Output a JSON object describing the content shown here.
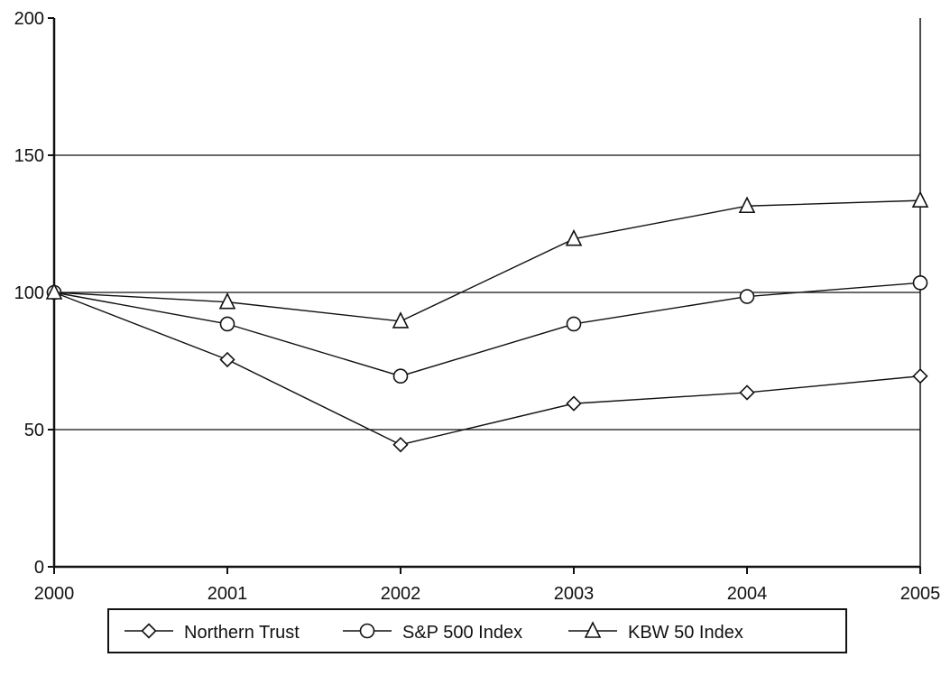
{
  "chart_data": {
    "type": "line",
    "title": "",
    "xlabel": "",
    "ylabel": "",
    "x": [
      "2000",
      "2001",
      "2002",
      "2003",
      "2004",
      "2005"
    ],
    "ylim": [
      0,
      200
    ],
    "yticks": [
      0,
      50,
      100,
      150,
      200
    ],
    "ytick_labels": [
      "0",
      "50",
      "100",
      "150",
      "200"
    ],
    "grid": "horizontal at 50, 100, 150",
    "legend_position": "bottom",
    "series": [
      {
        "name": "Northern Trust",
        "marker": "diamond",
        "values": [
          100,
          75.5,
          44.5,
          59.5,
          63.5,
          69.5
        ]
      },
      {
        "name": "S&P 500 Index",
        "marker": "circle",
        "values": [
          100,
          88.5,
          69.5,
          88.5,
          98.5,
          103.5
        ]
      },
      {
        "name": "KBW 50 Index",
        "marker": "triangle",
        "values": [
          100,
          96.5,
          89.5,
          119.5,
          131.5,
          133.5
        ]
      }
    ],
    "colors": {
      "line": "#111111",
      "marker_fill": "#ffffff",
      "grid": "#111111"
    }
  }
}
